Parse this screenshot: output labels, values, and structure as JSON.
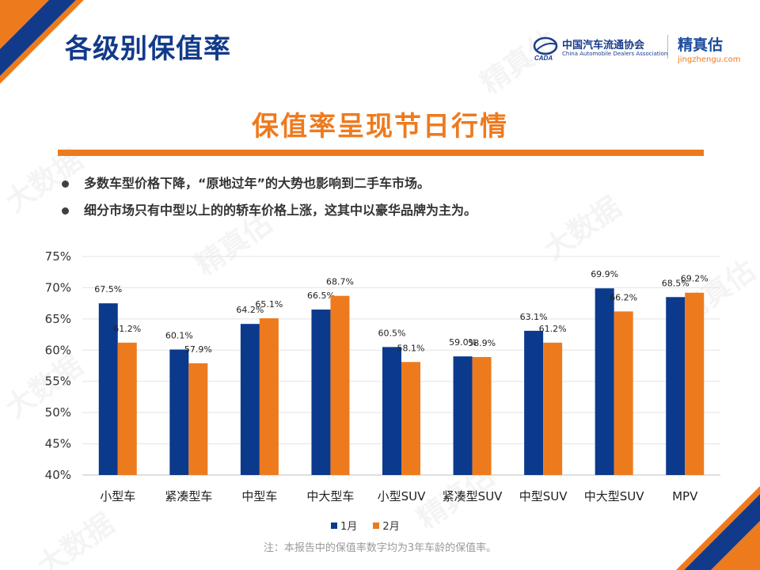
{
  "page": {
    "title": "各级别保值率",
    "subtitle": "保值率呈现节日行情",
    "bullets": [
      "多数车型价格下降，“原地过年”的大势也影响到二手车市场。",
      "细分市场只有中型以上的的轿车价格上涨，这其中以豪华品牌为主为。"
    ],
    "footnote": "注：本报告中的保值率数字均为3年车龄的保值率。"
  },
  "logos": {
    "cada_cn": "中国汽车流通协会",
    "cada_en": "China Automobile Dealers Association",
    "cada_badge": "CADA",
    "jzg_cn": "精真估",
    "jzg_url": "jingzhengu.com",
    "watermark": "精真估",
    "watermark_big": "大数据"
  },
  "colors": {
    "navy": "#0b3a8c",
    "orange": "#ee7a1e",
    "title_blue": "#123a8a"
  },
  "chart_data": {
    "type": "bar",
    "categories": [
      "小型车",
      "紧凑型车",
      "中型车",
      "中大型车",
      "小型SUV",
      "紧凑型SUV",
      "中型SUV",
      "中大型SUV",
      "MPV"
    ],
    "series": [
      {
        "name": "1月",
        "color": "#0b3a8c",
        "values": [
          67.5,
          60.1,
          64.2,
          66.5,
          60.5,
          59.0,
          63.1,
          69.9,
          68.5
        ],
        "labels": [
          "67.5%",
          "60.1%",
          "64.2%",
          "66.5%",
          "60.5%",
          "59.0%",
          "63.1%",
          "69.9%",
          "68.5%"
        ]
      },
      {
        "name": "2月",
        "color": "#ee7a1e",
        "values": [
          61.2,
          57.9,
          65.1,
          68.7,
          58.1,
          58.9,
          61.2,
          66.2,
          69.2
        ],
        "labels": [
          "61.2%",
          "57.9%",
          "65.1%",
          "68.7%",
          "58.1%",
          "58.9%",
          "61.2%",
          "66.2%",
          "69.2%"
        ]
      }
    ],
    "ylim": [
      40,
      75
    ],
    "yticks": [
      "40%",
      "45%",
      "50%",
      "55%",
      "60%",
      "65%",
      "70%",
      "75%"
    ],
    "grid": true,
    "legend": "bottom"
  }
}
